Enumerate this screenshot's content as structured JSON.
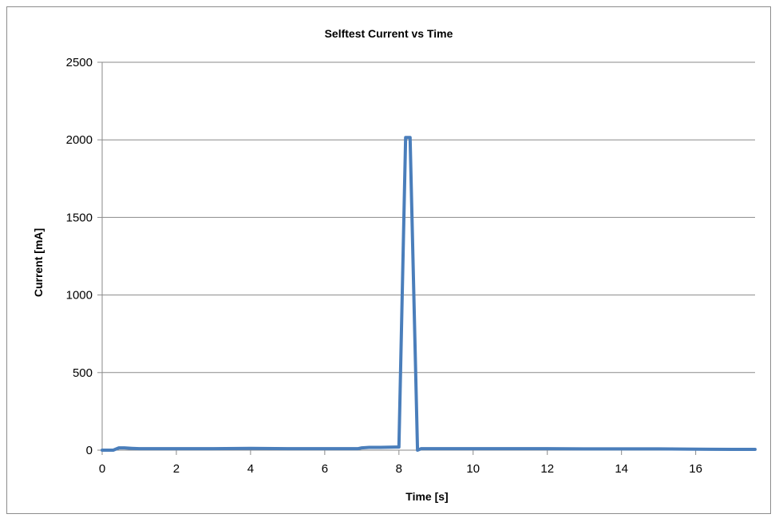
{
  "chart_data": {
    "type": "line",
    "title": "Selftest Current vs Time",
    "xlabel": "Time [s]",
    "ylabel": "Current [mA]",
    "xlim": [
      0,
      17.6
    ],
    "ylim": [
      0,
      2500
    ],
    "xticks": [
      0,
      2,
      4,
      6,
      8,
      10,
      12,
      14,
      16
    ],
    "yticks": [
      0,
      500,
      1000,
      1500,
      2000,
      2500
    ],
    "grid": "horizontal",
    "series_color": "#4a7ebb",
    "x": [
      0,
      0.3,
      0.45,
      0.6,
      0.8,
      1.0,
      2.0,
      3.0,
      4.0,
      5.0,
      6.0,
      6.9,
      7.0,
      7.2,
      7.5,
      7.9,
      8.0,
      8.18,
      8.3,
      8.5,
      8.6,
      9.0,
      10.0,
      11.0,
      12.0,
      13.0,
      14.0,
      15.0,
      16.0,
      17.0,
      17.6
    ],
    "y": [
      0,
      0,
      15,
      15,
      12,
      10,
      10,
      10,
      12,
      10,
      10,
      10,
      15,
      18,
      18,
      20,
      20,
      2015,
      2015,
      0,
      10,
      10,
      10,
      10,
      10,
      8,
      8,
      8,
      6,
      5,
      5
    ]
  }
}
